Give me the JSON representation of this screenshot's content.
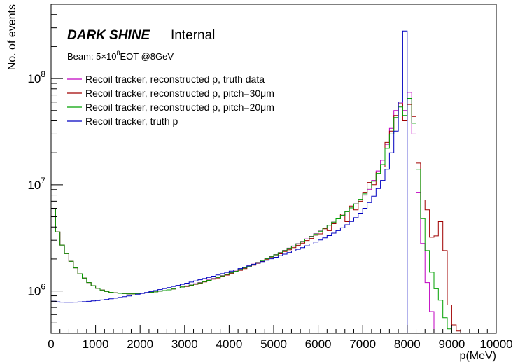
{
  "chart_data": {
    "type": "line",
    "title": "",
    "brand": "DARK SHINE",
    "brand_suffix": "Internal",
    "beam_prefix": "Beam: 5×10",
    "beam_exp": "8",
    "beam_suffix": "EOT @8GeV",
    "xlabel": "p(MeV)",
    "ylabel": "No. of events",
    "xlim": [
      0,
      10000
    ],
    "ylim": [
      400000,
      500000000
    ],
    "yscale": "log",
    "grid": false,
    "legend_position": "upper-left",
    "x_ticks": [
      {
        "value": 0,
        "label": "0"
      },
      {
        "value": 1000,
        "label": "1000"
      },
      {
        "value": 2000,
        "label": "2000"
      },
      {
        "value": 3000,
        "label": "3000"
      },
      {
        "value": 4000,
        "label": "4000"
      },
      {
        "value": 5000,
        "label": "5000"
      },
      {
        "value": 6000,
        "label": "6000"
      },
      {
        "value": 7000,
        "label": "7000"
      },
      {
        "value": 8000,
        "label": "8000"
      },
      {
        "value": 9000,
        "label": "9000"
      },
      {
        "value": 10000,
        "label": "10000"
      }
    ],
    "y_ticks": [
      {
        "value": 1000000,
        "base": "10",
        "exp": "6"
      },
      {
        "value": 10000000,
        "base": "10",
        "exp": "7"
      },
      {
        "value": 100000000,
        "base": "10",
        "exp": "8"
      }
    ],
    "series": [
      {
        "name": "Recoil tracker, reconstructed p, truth data",
        "color": "#c000c0",
        "x": [
          0,
          100,
          200,
          300,
          400,
          500,
          600,
          700,
          800,
          900,
          1000,
          1100,
          1200,
          1300,
          1400,
          1500,
          1600,
          1700,
          1800,
          1900,
          2000,
          2100,
          2200,
          2300,
          2400,
          2500,
          2600,
          2700,
          2800,
          2900,
          3000,
          3100,
          3200,
          3300,
          3400,
          3500,
          3600,
          3700,
          3800,
          3900,
          4000,
          4100,
          4200,
          4300,
          4400,
          4500,
          4600,
          4700,
          4800,
          4900,
          5000,
          5100,
          5200,
          5300,
          5400,
          5500,
          5600,
          5700,
          5800,
          5900,
          6000,
          6100,
          6200,
          6300,
          6400,
          6500,
          6600,
          6700,
          6800,
          6900,
          7000,
          7100,
          7200,
          7300,
          7400,
          7500,
          7600,
          7700,
          7800,
          7900,
          8000,
          8100,
          8200,
          8300,
          8400,
          8500,
          8600,
          8700,
          8800,
          8900,
          9000,
          9100,
          9200,
          9300,
          9400,
          9500,
          9600,
          9700,
          9800,
          9900
        ],
        "values": [
          6000000,
          3600000,
          2700000,
          2250000,
          1900000,
          1650000,
          1450000,
          1320000,
          1200000,
          1120000,
          1060000,
          1020000,
          990000,
          970000,
          960000,
          950000,
          945000,
          940000,
          940000,
          945000,
          950000,
          960000,
          970000,
          980000,
          995000,
          1010000,
          1025000,
          1045000,
          1065000,
          1090000,
          1115000,
          1140000,
          1170000,
          1200000,
          1235000,
          1270000,
          1310000,
          1350000,
          1395000,
          1440000,
          1490000,
          1540000,
          1600000,
          1660000,
          1720000,
          1790000,
          1860000,
          1940000,
          2020000,
          2110000,
          2200000,
          2300000,
          2410000,
          2530000,
          2650000,
          2790000,
          2930000,
          3090000,
          3270000,
          3460000,
          3670000,
          3910000,
          4170000,
          4460000,
          4790000,
          5160000,
          5580000,
          6060000,
          6610000,
          7260000,
          8000000,
          9000000,
          11000000,
          13500000,
          17000000,
          24000000,
          34000000,
          50000000,
          60000000,
          50000000,
          74000000,
          30000000,
          8500000,
          2800000,
          1200000,
          640000,
          0,
          0,
          0,
          0,
          0,
          0,
          0,
          0,
          0,
          0,
          0,
          0,
          0,
          0
        ]
      },
      {
        "name": "Recoil tracker, reconstructed p, pitch=30μm",
        "color": "#a00000",
        "x": [
          0,
          100,
          200,
          300,
          400,
          500,
          600,
          700,
          800,
          900,
          1000,
          1100,
          1200,
          1300,
          1400,
          1500,
          1600,
          1700,
          1800,
          1900,
          2000,
          2100,
          2200,
          2300,
          2400,
          2500,
          2600,
          2700,
          2800,
          2900,
          3000,
          3100,
          3200,
          3300,
          3400,
          3500,
          3600,
          3700,
          3800,
          3900,
          4000,
          4100,
          4200,
          4300,
          4400,
          4500,
          4600,
          4700,
          4800,
          4900,
          5000,
          5100,
          5200,
          5300,
          5400,
          5500,
          5600,
          5700,
          5800,
          5900,
          6000,
          6100,
          6200,
          6300,
          6400,
          6500,
          6600,
          6700,
          6800,
          6900,
          7000,
          7100,
          7200,
          7300,
          7400,
          7500,
          7600,
          7700,
          7800,
          7900,
          8000,
          8100,
          8200,
          8300,
          8400,
          8500,
          8600,
          8700,
          8800,
          8900,
          9000,
          9100,
          9200,
          9300,
          9400,
          9500,
          9600,
          9700,
          9800,
          9900
        ],
        "values": [
          6000000,
          3600000,
          2700000,
          2250000,
          1900000,
          1650000,
          1450000,
          1320000,
          1200000,
          1120000,
          1060000,
          1020000,
          990000,
          970000,
          960000,
          950000,
          945000,
          940000,
          940000,
          945000,
          950000,
          960000,
          970000,
          980000,
          995000,
          1010000,
          1025000,
          1045000,
          1065000,
          1090000,
          1100000,
          1125000,
          1155000,
          1180000,
          1215000,
          1250000,
          1290000,
          1325000,
          1370000,
          1410000,
          1460000,
          1510000,
          1565000,
          1620000,
          1685000,
          1750000,
          1820000,
          1895000,
          1975000,
          2060000,
          2150000,
          2240000,
          2350000,
          2440000,
          2560000,
          2690000,
          2820000,
          2980000,
          3120000,
          3350000,
          3450000,
          3850000,
          3700000,
          4300000,
          4800000,
          5300000,
          4500000,
          6300000,
          5800000,
          7000000,
          8500000,
          10500000,
          10000000,
          13200000,
          14700000,
          25000000,
          32000000,
          45000000,
          58000000,
          40000000,
          57000000,
          44000000,
          16000000,
          7200000,
          5800000,
          3200000,
          3300000,
          4500000,
          2400000,
          740000,
          480000,
          420000,
          0,
          0,
          0,
          0,
          0,
          0,
          0,
          0
        ]
      },
      {
        "name": "Recoil tracker, reconstructed p, pitch=20μm",
        "color": "#00a000",
        "x": [
          0,
          100,
          200,
          300,
          400,
          500,
          600,
          700,
          800,
          900,
          1000,
          1100,
          1200,
          1300,
          1400,
          1500,
          1600,
          1700,
          1800,
          1900,
          2000,
          2100,
          2200,
          2300,
          2400,
          2500,
          2600,
          2700,
          2800,
          2900,
          3000,
          3100,
          3200,
          3300,
          3400,
          3500,
          3600,
          3700,
          3800,
          3900,
          4000,
          4100,
          4200,
          4300,
          4400,
          4500,
          4600,
          4700,
          4800,
          4900,
          5000,
          5100,
          5200,
          5300,
          5400,
          5500,
          5600,
          5700,
          5800,
          5900,
          6000,
          6100,
          6200,
          6300,
          6400,
          6500,
          6600,
          6700,
          6800,
          6900,
          7000,
          7100,
          7200,
          7300,
          7400,
          7500,
          7600,
          7700,
          7800,
          7900,
          8000,
          8100,
          8200,
          8300,
          8400,
          8500,
          8600,
          8700,
          8800,
          8900,
          9000,
          9100,
          9200,
          9300,
          9400,
          9500,
          9600,
          9700,
          9800,
          9900
        ],
        "values": [
          6000000,
          3600000,
          2700000,
          2250000,
          1900000,
          1650000,
          1450000,
          1320000,
          1200000,
          1120000,
          1060000,
          1020000,
          990000,
          970000,
          960000,
          950000,
          945000,
          940000,
          940000,
          945000,
          950000,
          960000,
          970000,
          980000,
          995000,
          1010000,
          1025000,
          1045000,
          1065000,
          1090000,
          1110000,
          1135000,
          1160000,
          1190000,
          1225000,
          1260000,
          1300000,
          1340000,
          1385000,
          1430000,
          1480000,
          1530000,
          1590000,
          1645000,
          1710000,
          1780000,
          1850000,
          1930000,
          2010000,
          2100000,
          2190000,
          2290000,
          2400000,
          2520000,
          2640000,
          2780000,
          2920000,
          3080000,
          3250000,
          3440000,
          3650000,
          3900000,
          4150000,
          4450000,
          4780000,
          5150000,
          5570000,
          6050000,
          6600000,
          7300000,
          8200000,
          9300000,
          10800000,
          12800000,
          15500000,
          22000000,
          30000000,
          43000000,
          54000000,
          45000000,
          65000000,
          38000000,
          14000000,
          4800000,
          2400000,
          1500000,
          1050000,
          820000,
          560000,
          440000,
          0,
          0,
          0,
          0,
          0,
          0,
          0,
          0,
          0,
          0
        ]
      },
      {
        "name": "Recoil tracker, truth p",
        "color": "#0000c0",
        "x": [
          0,
          100,
          200,
          300,
          400,
          500,
          600,
          700,
          800,
          900,
          1000,
          1100,
          1200,
          1300,
          1400,
          1500,
          1600,
          1700,
          1800,
          1900,
          2000,
          2100,
          2200,
          2300,
          2400,
          2500,
          2600,
          2700,
          2800,
          2900,
          3000,
          3100,
          3200,
          3300,
          3400,
          3500,
          3600,
          3700,
          3800,
          3900,
          4000,
          4100,
          4200,
          4300,
          4400,
          4500,
          4600,
          4700,
          4800,
          4900,
          5000,
          5100,
          5200,
          5300,
          5400,
          5500,
          5600,
          5700,
          5800,
          5900,
          6000,
          6100,
          6200,
          6300,
          6400,
          6500,
          6600,
          6700,
          6800,
          6900,
          7000,
          7100,
          7200,
          7300,
          7400,
          7500,
          7600,
          7700,
          7800,
          7900
        ],
        "values": [
          800000,
          790000,
          785000,
          782000,
          782000,
          784000,
          788000,
          793000,
          799000,
          806000,
          814000,
          823000,
          833000,
          844000,
          856000,
          869000,
          883000,
          898000,
          914000,
          931000,
          949000,
          968000,
          988000,
          1009000,
          1031000,
          1054000,
          1078000,
          1103000,
          1129000,
          1156000,
          1184000,
          1213000,
          1243000,
          1275000,
          1308000,
          1342000,
          1378000,
          1415000,
          1454000,
          1494000,
          1536000,
          1580000,
          1626000,
          1673000,
          1723000,
          1775000,
          1830000,
          1887000,
          1947000,
          2010000,
          2076000,
          2146000,
          2220000,
          2298000,
          2380000,
          2467000,
          2560000,
          2660000,
          2770000,
          2890000,
          3020000,
          3160000,
          3320000,
          3500000,
          3700000,
          3930000,
          4200000,
          4520000,
          4900000,
          5400000,
          6000000,
          6800000,
          7800000,
          9200000,
          11000000,
          14000000,
          20000000,
          32000000,
          60000000,
          280000000
        ]
      }
    ]
  }
}
